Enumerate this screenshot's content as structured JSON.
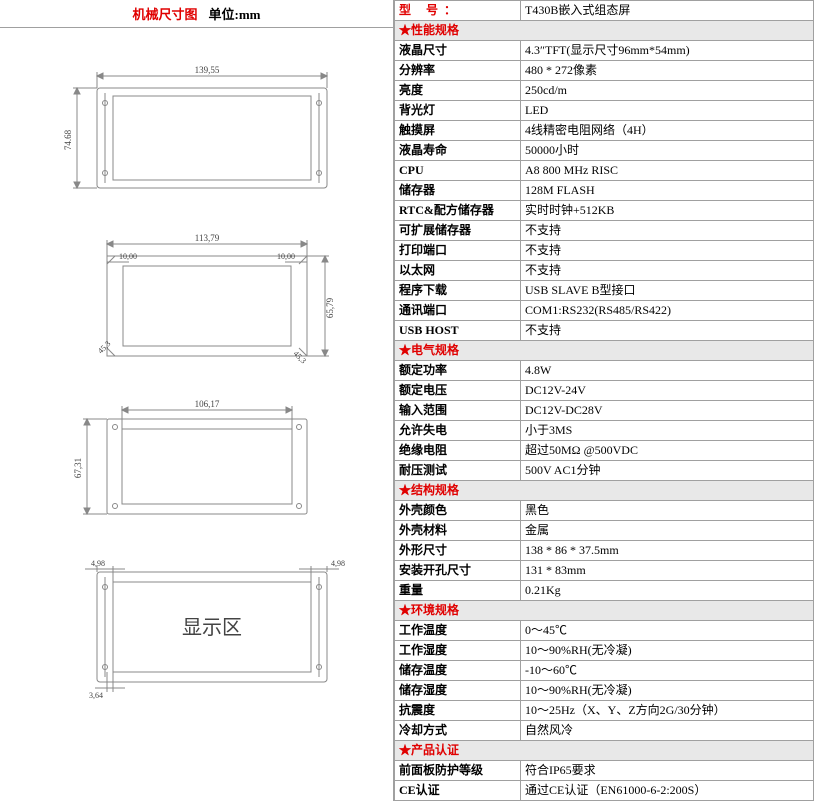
{
  "left": {
    "title": "机械尺寸图",
    "unit": "单位:mm",
    "dims": {
      "d1_w": "139,55",
      "d1_h": "74.68",
      "d2_w": "113,79",
      "d2_h": "65,79",
      "d2_notch": "45,3",
      "d2_tl": "10,00",
      "d2_tr": "10,00",
      "d3_w": "106,17",
      "d3_h": "67,31",
      "d4_l": "4,98",
      "d4_r": "4,98",
      "d4_b": "3,64",
      "d4_label": "显示区"
    }
  },
  "model": {
    "label": "型  号：",
    "value": "T430B嵌入式组态屏"
  },
  "sections": [
    {
      "type": "header",
      "text": "★性能规格"
    },
    {
      "type": "row",
      "label": "液晶尺寸",
      "value": "4.3″TFT(显示尺寸96mm*54mm)"
    },
    {
      "type": "row",
      "label": "分辨率",
      "value": "480 * 272像素"
    },
    {
      "type": "row",
      "label": "亮度",
      "value": "250cd/m"
    },
    {
      "type": "row",
      "label": "背光灯",
      "value": "LED"
    },
    {
      "type": "row",
      "label": "触摸屏",
      "value": "4线精密电阻网络（4H）"
    },
    {
      "type": "row",
      "label": "液晶寿命",
      "value": "50000小时"
    },
    {
      "type": "row",
      "label": "CPU",
      "value": "A8 800 MHz RISC"
    },
    {
      "type": "row",
      "label": "储存器",
      "value": "128M FLASH"
    },
    {
      "type": "row",
      "label": "RTC&配方储存器",
      "value": "实时时钟+512KB"
    },
    {
      "type": "row",
      "label": "可扩展储存器",
      "value": "不支持"
    },
    {
      "type": "row",
      "label": "打印端口",
      "value": "不支持"
    },
    {
      "type": "row",
      "label": "以太网",
      "value": "不支持"
    },
    {
      "type": "row",
      "label": "程序下载",
      "value": "USB SLAVE B型接口"
    },
    {
      "type": "row",
      "label": "通讯端口",
      "value": "COM1:RS232(RS485/RS422)"
    },
    {
      "type": "row",
      "label": "USB HOST",
      "value": "不支持"
    },
    {
      "type": "header",
      "text": "★电气规格"
    },
    {
      "type": "row",
      "label": "额定功率",
      "value": "4.8W"
    },
    {
      "type": "row",
      "label": "额定电压",
      "value": "DC12V-24V"
    },
    {
      "type": "row",
      "label": "输入范围",
      "value": "DC12V-DC28V"
    },
    {
      "type": "row",
      "label": "允许失电",
      "value": "小于3MS"
    },
    {
      "type": "row",
      "label": "绝缘电阻",
      "value": "超过50MΩ @500VDC"
    },
    {
      "type": "row",
      "label": "耐压测试",
      "value": "500V AC1分钟"
    },
    {
      "type": "header",
      "text": "★结构规格"
    },
    {
      "type": "row",
      "label": "外壳颜色",
      "value": "黑色"
    },
    {
      "type": "row",
      "label": "外壳材料",
      "value": "金属"
    },
    {
      "type": "row",
      "label": "外形尺寸",
      "value": "138 * 86 * 37.5mm"
    },
    {
      "type": "row",
      "label": "安装开孔尺寸",
      "value": "131 * 83mm"
    },
    {
      "type": "row",
      "label": "重量",
      "value": "0.21Kg"
    },
    {
      "type": "header",
      "text": "★环境规格"
    },
    {
      "type": "row",
      "label": "工作温度",
      "value": "0～45℃"
    },
    {
      "type": "row",
      "label": "工作湿度",
      "value": "10～90%RH(无冷凝)"
    },
    {
      "type": "row",
      "label": "储存温度",
      "value": "-10～60℃"
    },
    {
      "type": "row",
      "label": "储存湿度",
      "value": "10～90%RH(无冷凝)"
    },
    {
      "type": "row",
      "label": "抗震度",
      "value": "10～25Hz（X、Y、Z方向2G/30分钟）"
    },
    {
      "type": "row",
      "label": "冷却方式",
      "value": "自然风冷"
    },
    {
      "type": "header",
      "text": "★产品认证"
    },
    {
      "type": "row",
      "label": "前面板防护等级",
      "value": "符合IP65要求"
    },
    {
      "type": "row",
      "label": "CE认证",
      "value": "通过CE认证（EN61000-6-2:200S）"
    }
  ],
  "colors": {
    "border": "#a0a0a0",
    "red": "#e00000",
    "header_bg": "#e8e8e8",
    "diagram_stroke": "#888888",
    "diagram_text": "#444444"
  }
}
